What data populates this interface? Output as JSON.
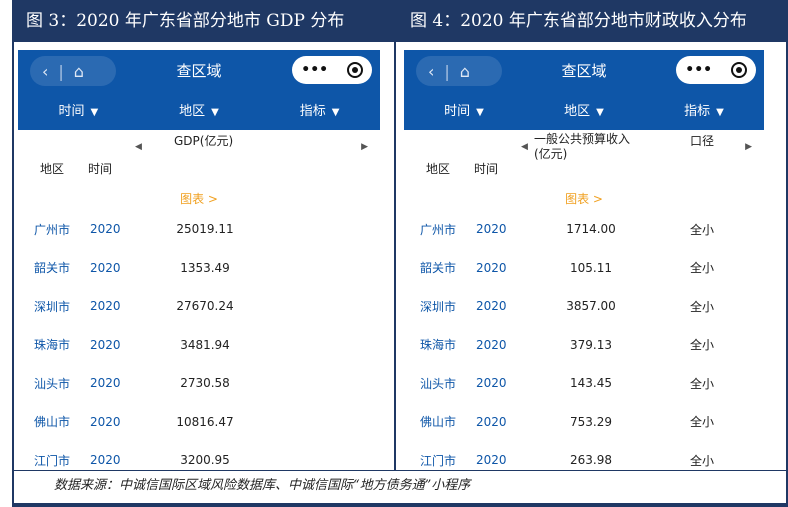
{
  "captions": {
    "left": "图 3：2020 年广东省部分地市 GDP 分布",
    "right": "图 4：2020 年广东省部分地市财政收入分布"
  },
  "app": {
    "title": "查区域",
    "back_icon": "‹",
    "home_icon": "⌂",
    "more_icon": "•••",
    "filters": {
      "time": "时间",
      "region": "地区",
      "indicator": "指标"
    }
  },
  "left_table": {
    "col_region": "地区",
    "col_time": "时间",
    "col_metric": "GDP(亿元)",
    "chart_link": "图表 >",
    "rows": [
      {
        "region": "广州市",
        "year": "2020",
        "value": "25019.11"
      },
      {
        "region": "韶关市",
        "year": "2020",
        "value": "1353.49"
      },
      {
        "region": "深圳市",
        "year": "2020",
        "value": "27670.24"
      },
      {
        "region": "珠海市",
        "year": "2020",
        "value": "3481.94"
      },
      {
        "region": "汕头市",
        "year": "2020",
        "value": "2730.58"
      },
      {
        "region": "佛山市",
        "year": "2020",
        "value": "10816.47"
      },
      {
        "region": "江门市",
        "year": "2020",
        "value": "3200.95"
      }
    ]
  },
  "right_table": {
    "col_region": "地区",
    "col_time": "时间",
    "col_metric_line1": "一般公共预算收入",
    "col_metric_line2": "(亿元)",
    "col_scope": "口径",
    "chart_link": "图表 >",
    "rows": [
      {
        "region": "广州市",
        "year": "2020",
        "value": "1714.00",
        "scope": "全小"
      },
      {
        "region": "韶关市",
        "year": "2020",
        "value": "105.11",
        "scope": "全小"
      },
      {
        "region": "深圳市",
        "year": "2020",
        "value": "3857.00",
        "scope": "全小"
      },
      {
        "region": "珠海市",
        "year": "2020",
        "value": "379.13",
        "scope": "全小"
      },
      {
        "region": "汕头市",
        "year": "2020",
        "value": "143.45",
        "scope": "全小"
      },
      {
        "region": "佛山市",
        "year": "2020",
        "value": "753.29",
        "scope": "全小"
      },
      {
        "region": "江门市",
        "year": "2020",
        "value": "263.98",
        "scope": "全小"
      }
    ]
  },
  "source": "数据来源：中诚信国际区域风险数据库、中诚信国际“地方债务通”小程序",
  "colors": {
    "caption_bg": "#1f3864",
    "appbar": "#0e56a8",
    "link": "#0e56a8",
    "chart_link": "#f0a020"
  }
}
